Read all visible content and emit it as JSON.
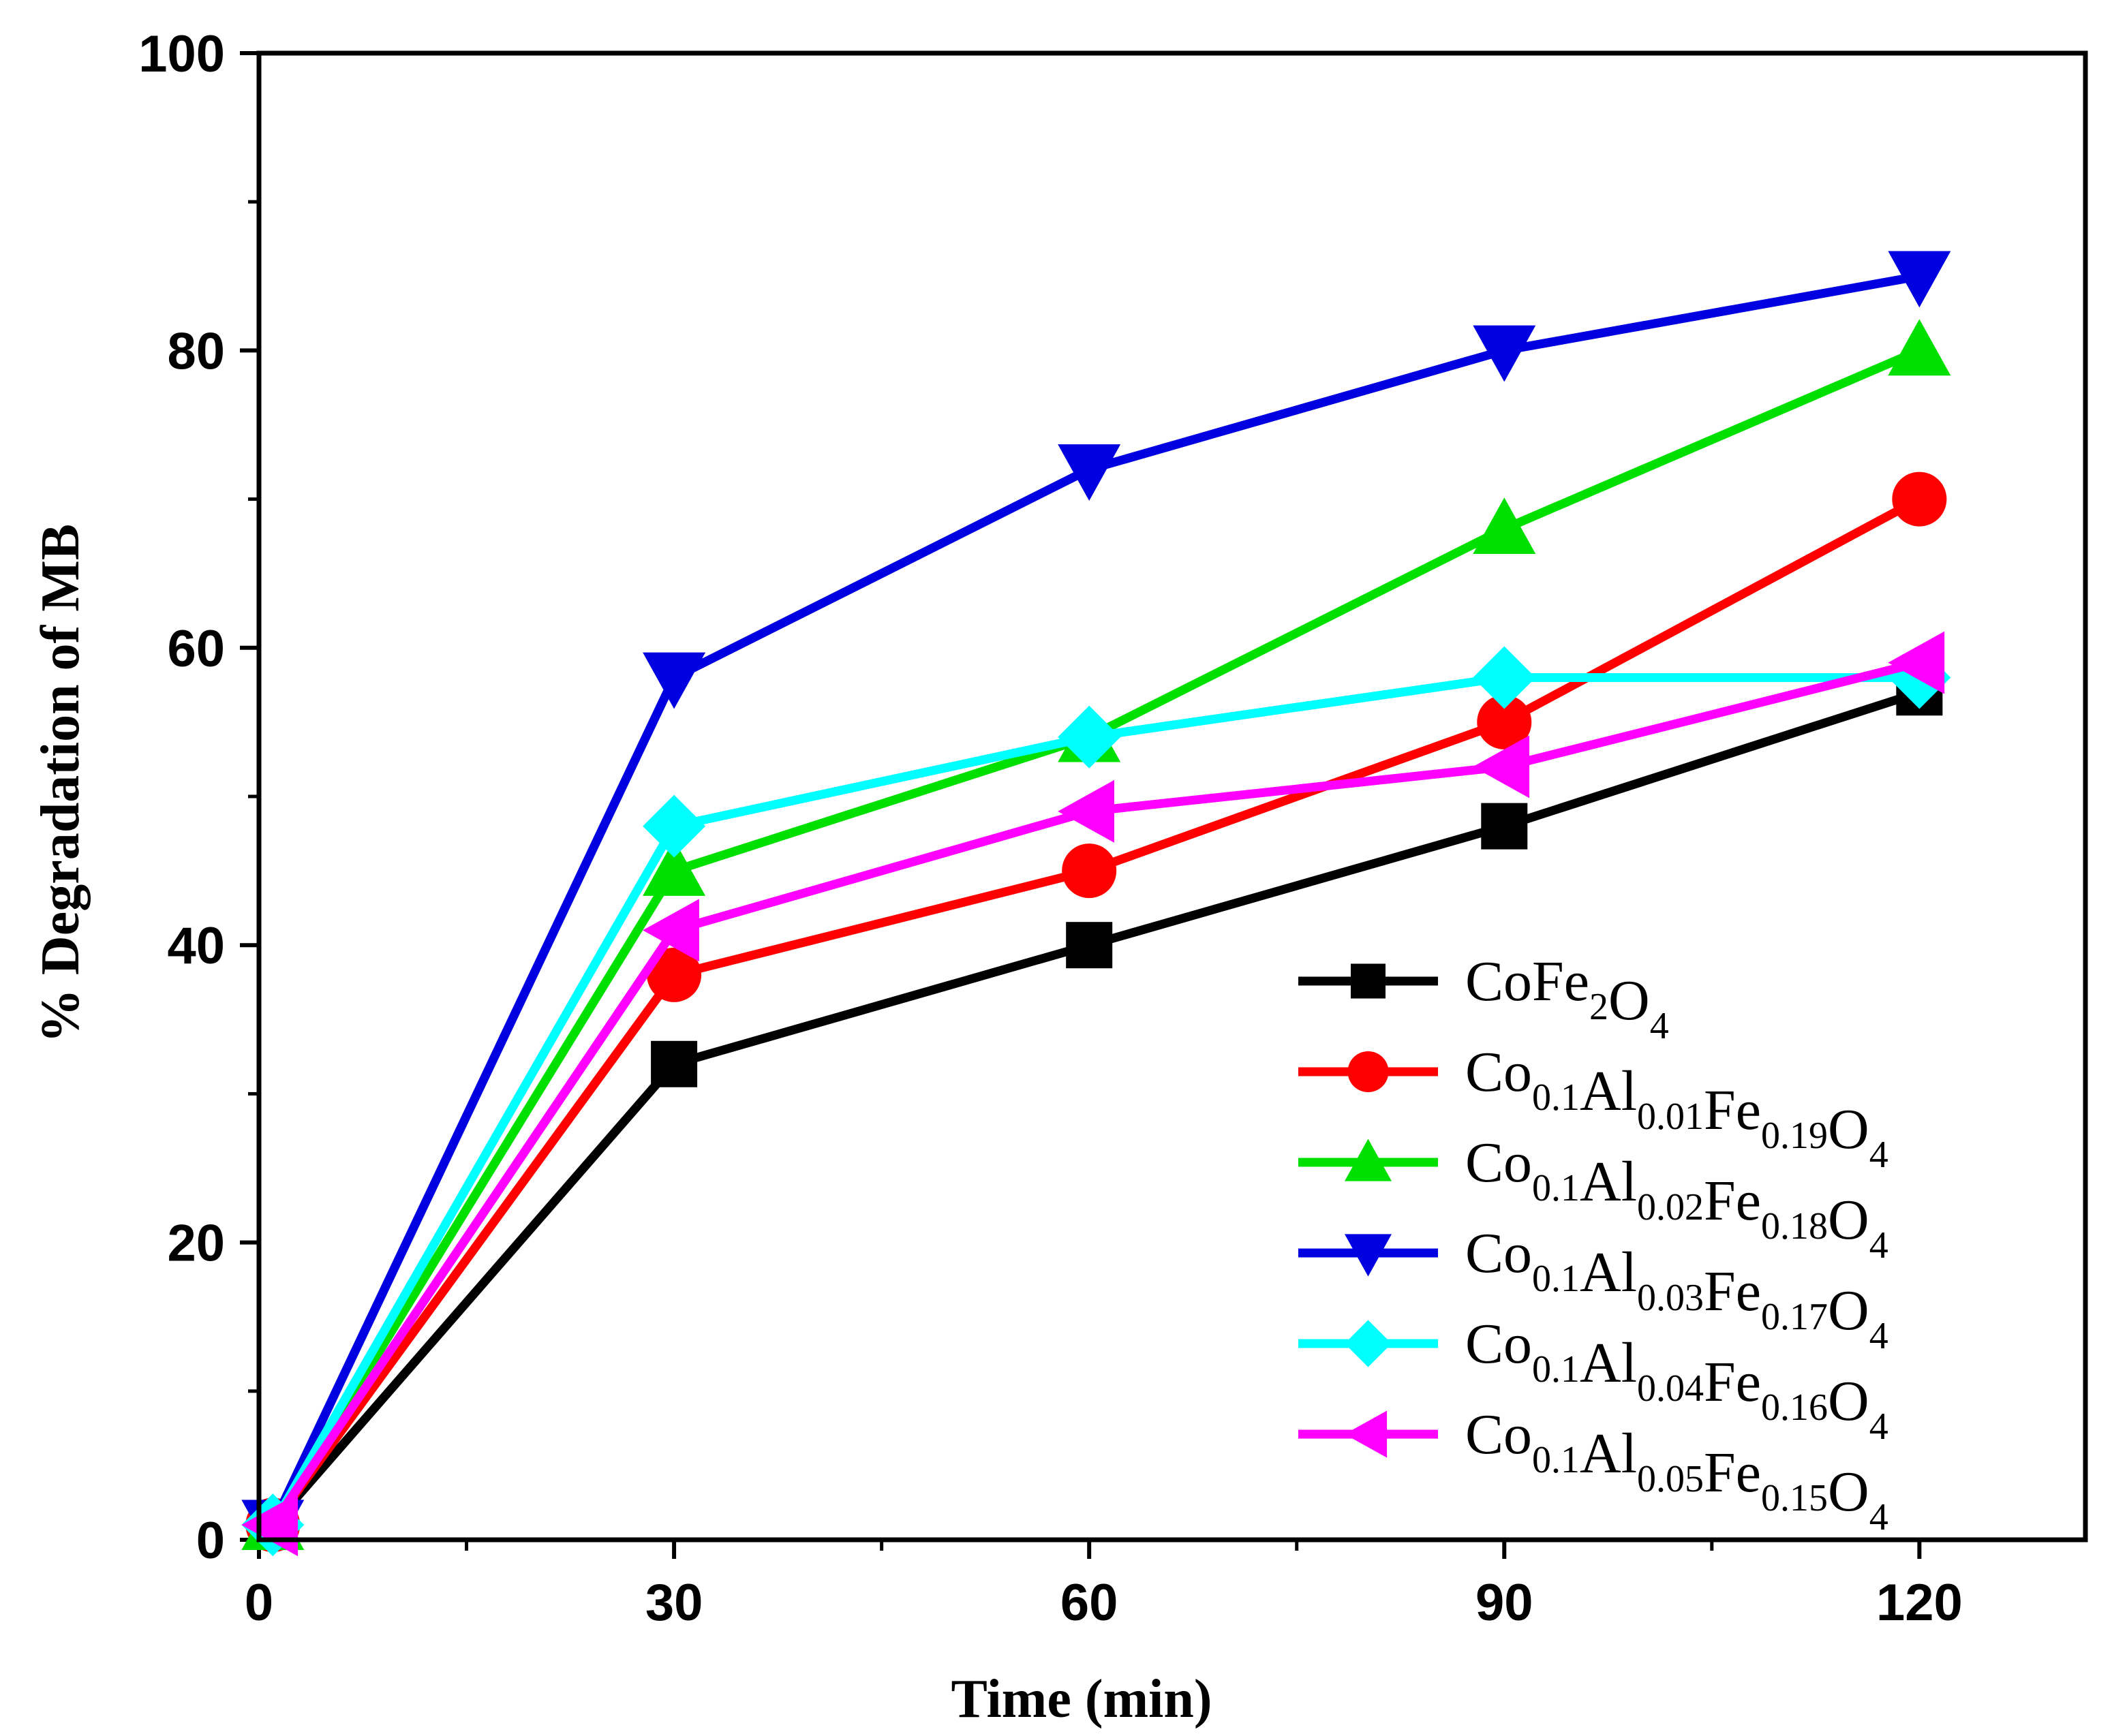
{
  "chart_data": {
    "type": "line",
    "xlabel": "Time (min)",
    "ylabel": "% Degradation of MB",
    "xlim": [
      0,
      132
    ],
    "ylim": [
      0,
      100
    ],
    "x_ticks": [
      0,
      30,
      60,
      90,
      120
    ],
    "x_minor_ticks": [
      15,
      45,
      75,
      105
    ],
    "y_ticks": [
      0,
      20,
      40,
      60,
      80,
      100
    ],
    "y_minor_ticks": [
      10,
      30,
      50,
      70,
      90
    ],
    "legend_position": "bottom-right",
    "x": [
      1,
      30,
      60,
      90,
      120
    ],
    "series": [
      {
        "name": "CoFe2O4",
        "label_parts": [
          [
            "Co",
            ""
          ],
          [
            "Fe",
            "2"
          ],
          [
            "O",
            "4"
          ]
        ],
        "color": "#000000",
        "marker": "square",
        "values": [
          1,
          32,
          40,
          48,
          57
        ]
      },
      {
        "name": "Co0.1Al0.01Fe0.19O4",
        "label_parts": [
          [
            "Co",
            "0.1"
          ],
          [
            "Al",
            "0.01"
          ],
          [
            "Fe",
            "0.19"
          ],
          [
            "O",
            "4"
          ]
        ],
        "color": "#ff0000",
        "marker": "circle",
        "values": [
          1,
          38,
          45,
          55,
          70
        ]
      },
      {
        "name": "Co0.1Al0.02Fe0.18O4",
        "label_parts": [
          [
            "Co",
            "0.1"
          ],
          [
            "Al",
            "0.02"
          ],
          [
            "Fe",
            "0.18"
          ],
          [
            "O",
            "4"
          ]
        ],
        "color": "#00e000",
        "marker": "triangle-up",
        "values": [
          1,
          45,
          54,
          68,
          80
        ]
      },
      {
        "name": "Co0.1Al0.03Fe0.17O4",
        "label_parts": [
          [
            "Co",
            "0.1"
          ],
          [
            "Al",
            "0.03"
          ],
          [
            "Fe",
            "0.17"
          ],
          [
            "O",
            "4"
          ]
        ],
        "color": "#0000e0",
        "marker": "triangle-down",
        "values": [
          1,
          58,
          72,
          80,
          85
        ]
      },
      {
        "name": "Co0.1Al0.04Fe0.16O4",
        "label_parts": [
          [
            "Co",
            "0.1"
          ],
          [
            "Al",
            "0.04"
          ],
          [
            "Fe",
            "0.16"
          ],
          [
            "O",
            "4"
          ]
        ],
        "color": "#00ffff",
        "marker": "diamond",
        "values": [
          1,
          48,
          54,
          58,
          58
        ]
      },
      {
        "name": "Co0.1Al0.05Fe0.15O4",
        "label_parts": [
          [
            "Co",
            "0.1"
          ],
          [
            "Al",
            "0.05"
          ],
          [
            "Fe",
            "0.15"
          ],
          [
            "O",
            "4"
          ]
        ],
        "color": "#ff00ff",
        "marker": "triangle-left",
        "values": [
          1,
          41,
          49,
          52,
          59
        ]
      }
    ]
  }
}
